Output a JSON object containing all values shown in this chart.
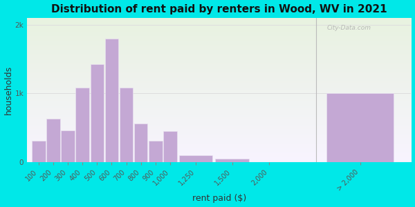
{
  "title": "Distribution of rent paid by renters in Wood, WV in 2021",
  "xlabel": "rent paid ($)",
  "ylabel": "households",
  "background_outer": "#00e8e8",
  "bar_color": "#c4a8d4",
  "bar_edge_color": "#e8e0f0",
  "categories": [
    "100",
    "200",
    "300",
    "400",
    "500",
    "600",
    "700",
    "800",
    "900",
    "1,000",
    "1,250",
    "1,500",
    "2,000",
    "> 2,000"
  ],
  "values": [
    310,
    630,
    460,
    1080,
    1430,
    1800,
    1080,
    560,
    310,
    450,
    100,
    50,
    0,
    1000
  ],
  "bar_widths": [
    1,
    1,
    1,
    1,
    1,
    1,
    1,
    1,
    1,
    1,
    2.5,
    2.5,
    2.5,
    5
  ],
  "bar_lefts": [
    0,
    1,
    2,
    3,
    4,
    5,
    6,
    7,
    8,
    9,
    10,
    12.5,
    15,
    20
  ],
  "ytick_labels": [
    "0",
    "1k",
    "2k"
  ],
  "ytick_values": [
    0,
    1000,
    2000
  ],
  "ylim": [
    0,
    2100
  ],
  "xlim": [
    -0.3,
    26
  ],
  "title_fontsize": 11,
  "axis_label_fontsize": 9,
  "tick_fontsize": 7,
  "xtick_positions": [
    0.5,
    1.5,
    2.5,
    3.5,
    4.5,
    5.5,
    6.5,
    7.5,
    8.5,
    9.5,
    11.25,
    13.75,
    16.25,
    22.5
  ],
  "grid_color": "#dddddd",
  "inner_bg": "#eef4e6"
}
